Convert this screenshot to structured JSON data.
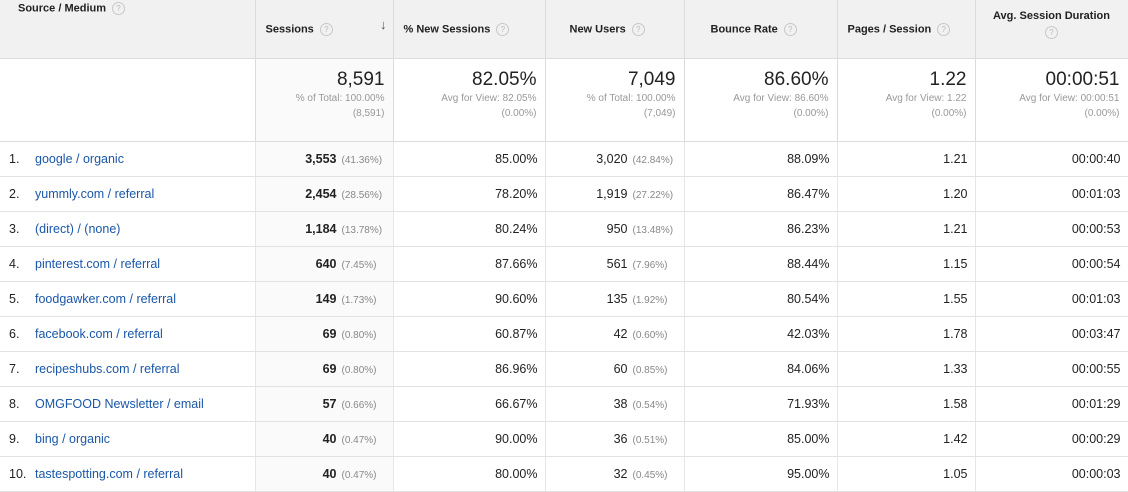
{
  "headers": {
    "source_medium": "Source / Medium",
    "sessions": "Sessions",
    "pct_new_sessions": "% New Sessions",
    "new_users": "New Users",
    "bounce_rate": "Bounce Rate",
    "pages_session": "Pages / Session",
    "avg_session_duration": "Avg. Session Duration",
    "help_icon": "?",
    "sort_icon": "↓"
  },
  "summary": {
    "sessions": {
      "value": "8,591",
      "line1": "% of Total: 100.00%",
      "line2": "(8,591)"
    },
    "pct_new_sessions": {
      "value": "82.05%",
      "line1": "Avg for View: 82.05%",
      "line2": "(0.00%)"
    },
    "new_users": {
      "value": "7,049",
      "line1": "% of Total: 100.00%",
      "line2": "(7,049)"
    },
    "bounce_rate": {
      "value": "86.60%",
      "line1": "Avg for View: 86.60%",
      "line2": "(0.00%)"
    },
    "pages_session": {
      "value": "1.22",
      "line1": "Avg for View: 1.22",
      "line2": "(0.00%)"
    },
    "avg_session_duration": {
      "value": "00:00:51",
      "line1": "Avg for View: 00:00:51",
      "line2": "(0.00%)"
    }
  },
  "rows": [
    {
      "idx": "1.",
      "source": "google / organic",
      "sessions": "3,553",
      "sessions_pct": "(41.36%)",
      "pct_new": "85.00%",
      "new_users": "3,020",
      "new_users_pct": "(42.84%)",
      "bounce": "88.09%",
      "pages": "1.21",
      "duration": "00:00:40"
    },
    {
      "idx": "2.",
      "source": "yummly.com / referral",
      "sessions": "2,454",
      "sessions_pct": "(28.56%)",
      "pct_new": "78.20%",
      "new_users": "1,919",
      "new_users_pct": "(27.22%)",
      "bounce": "86.47%",
      "pages": "1.20",
      "duration": "00:01:03"
    },
    {
      "idx": "3.",
      "source": "(direct) / (none)",
      "sessions": "1,184",
      "sessions_pct": "(13.78%)",
      "pct_new": "80.24%",
      "new_users": "950",
      "new_users_pct": "(13.48%)",
      "bounce": "86.23%",
      "pages": "1.21",
      "duration": "00:00:53"
    },
    {
      "idx": "4.",
      "source": "pinterest.com / referral",
      "sessions": "640",
      "sessions_pct": "(7.45%)",
      "pct_new": "87.66%",
      "new_users": "561",
      "new_users_pct": "(7.96%)",
      "bounce": "88.44%",
      "pages": "1.15",
      "duration": "00:00:54"
    },
    {
      "idx": "5.",
      "source": "foodgawker.com / referral",
      "sessions": "149",
      "sessions_pct": "(1.73%)",
      "pct_new": "90.60%",
      "new_users": "135",
      "new_users_pct": "(1.92%)",
      "bounce": "80.54%",
      "pages": "1.55",
      "duration": "00:01:03"
    },
    {
      "idx": "6.",
      "source": "facebook.com / referral",
      "sessions": "69",
      "sessions_pct": "(0.80%)",
      "pct_new": "60.87%",
      "new_users": "42",
      "new_users_pct": "(0.60%)",
      "bounce": "42.03%",
      "pages": "1.78",
      "duration": "00:03:47"
    },
    {
      "idx": "7.",
      "source": "recipeshubs.com / referral",
      "sessions": "69",
      "sessions_pct": "(0.80%)",
      "pct_new": "86.96%",
      "new_users": "60",
      "new_users_pct": "(0.85%)",
      "bounce": "84.06%",
      "pages": "1.33",
      "duration": "00:00:55"
    },
    {
      "idx": "8.",
      "source": "OMGFOOD Newsletter / email",
      "sessions": "57",
      "sessions_pct": "(0.66%)",
      "pct_new": "66.67%",
      "new_users": "38",
      "new_users_pct": "(0.54%)",
      "bounce": "71.93%",
      "pages": "1.58",
      "duration": "00:01:29"
    },
    {
      "idx": "9.",
      "source": "bing / organic",
      "sessions": "40",
      "sessions_pct": "(0.47%)",
      "pct_new": "90.00%",
      "new_users": "36",
      "new_users_pct": "(0.51%)",
      "bounce": "85.00%",
      "pages": "1.42",
      "duration": "00:00:29"
    },
    {
      "idx": "10.",
      "source": "tastespotting.com / referral",
      "sessions": "40",
      "sessions_pct": "(0.47%)",
      "pct_new": "80.00%",
      "new_users": "32",
      "new_users_pct": "(0.45%)",
      "bounce": "95.00%",
      "pages": "1.05",
      "duration": "00:00:03"
    }
  ]
}
